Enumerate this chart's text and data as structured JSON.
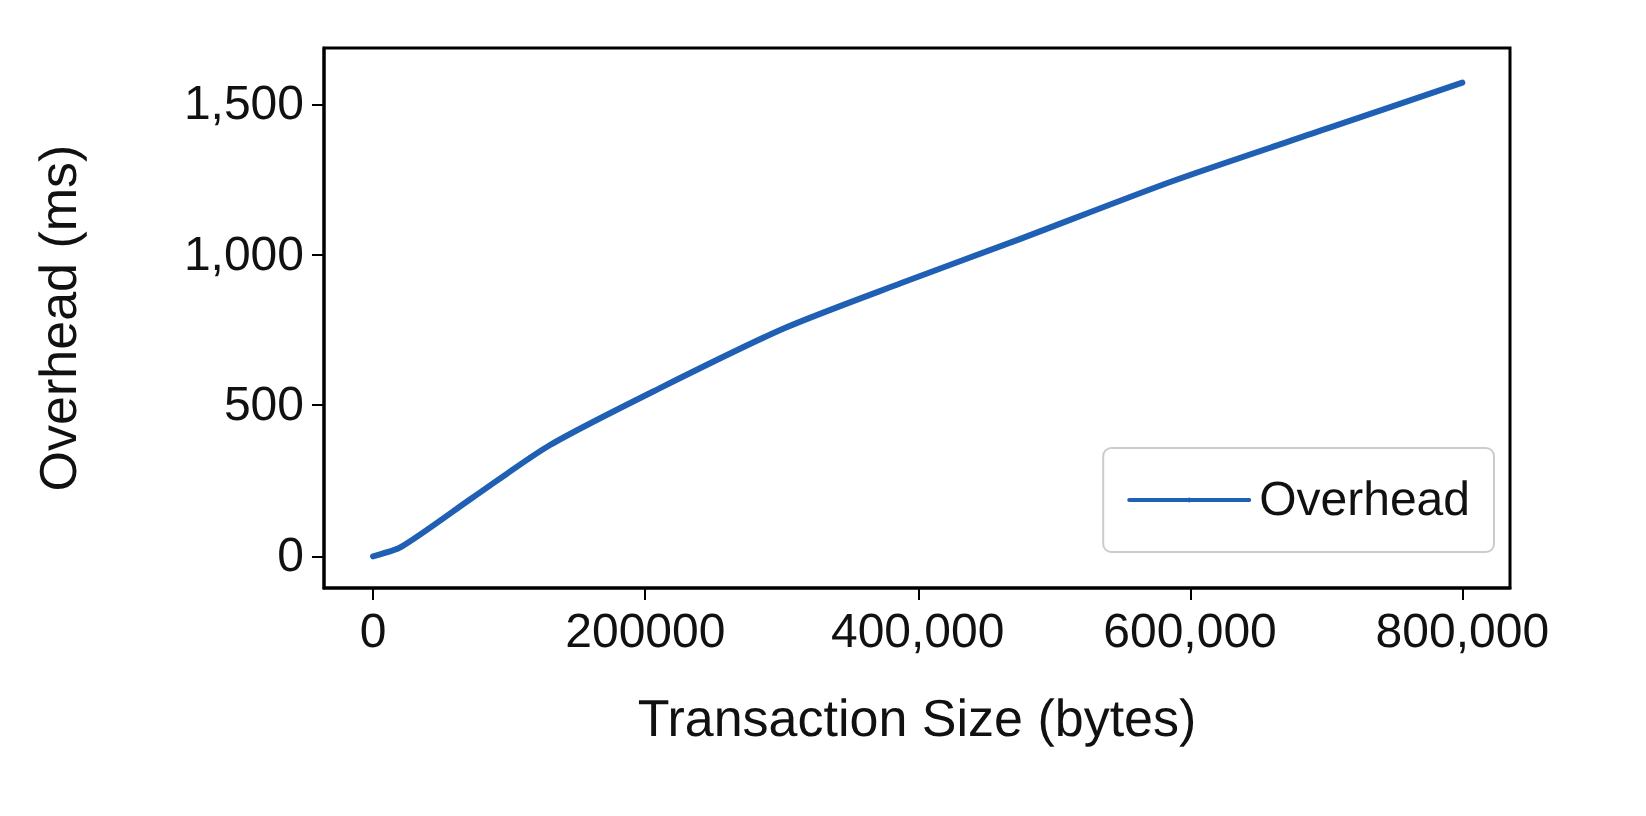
{
  "chart_data": {
    "type": "line",
    "xlabel": "Transaction Size (bytes)",
    "ylabel": "Overhead (ms)",
    "x": [
      0,
      21000,
      73000,
      130000,
      210000,
      302000,
      388000,
      474000,
      588000,
      702000,
      800000
    ],
    "series": [
      {
        "name": "Overhead",
        "color": "#1f5fb4",
        "values": [
          0,
          32,
          194,
          369,
          556,
          756,
          906,
          1050,
          1245,
          1420,
          1570
        ]
      }
    ],
    "xlim": [
      -36000,
      835000
    ],
    "ylim": [
      -105,
      1685
    ],
    "xticks": [
      0,
      200000,
      {
        "value": 400000,
        "label": "400,000"
      },
      {
        "value": 600000,
        "label": "600,000"
      },
      {
        "value": 800000,
        "label": "800,000"
      }
    ],
    "yticks": [
      0,
      500,
      {
        "value": 1000,
        "label": "1,000"
      },
      {
        "value": 1500,
        "label": "1,500"
      }
    ],
    "grid": false,
    "legend": "bottom right",
    "marker": "none",
    "line_style": "solid"
  }
}
